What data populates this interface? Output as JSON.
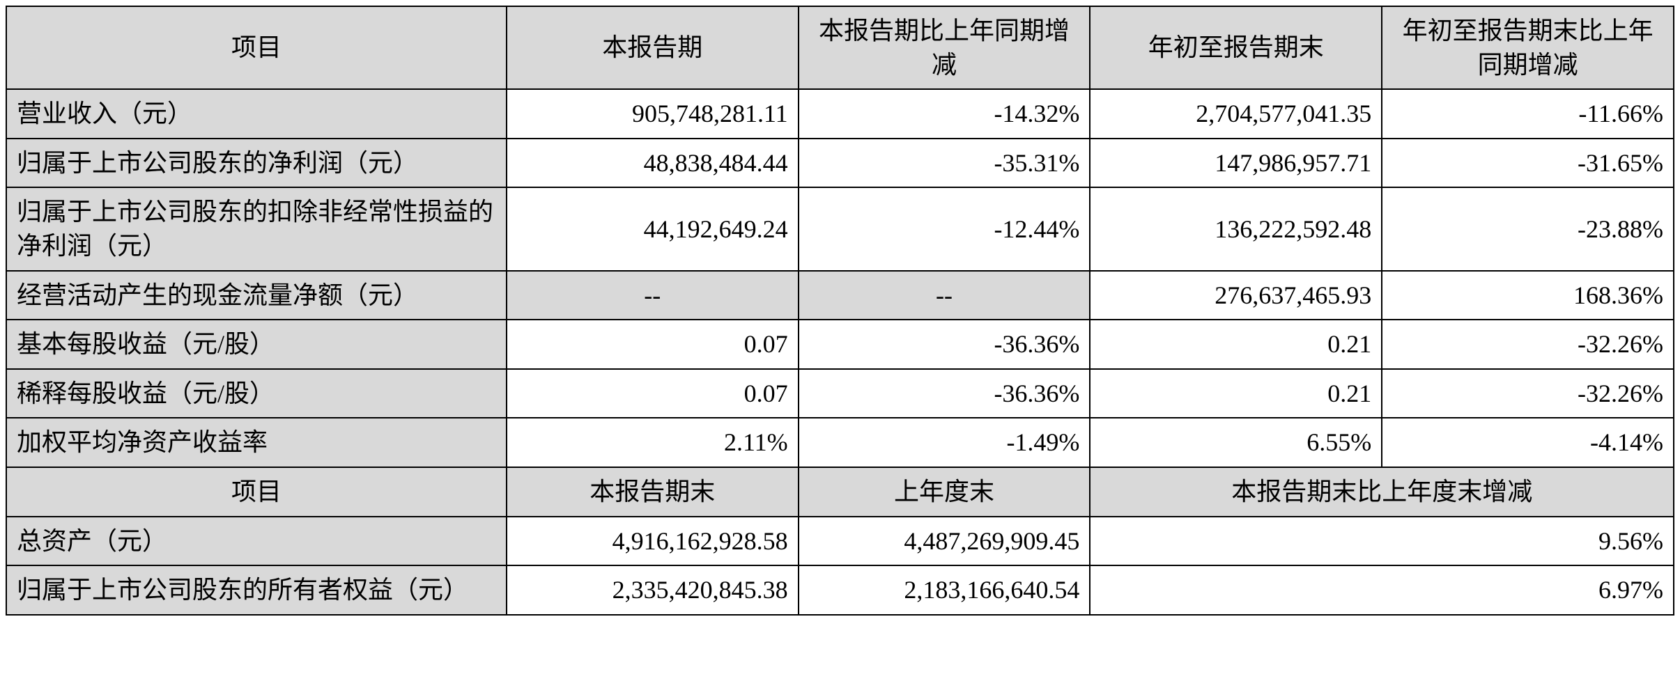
{
  "table": {
    "type": "table",
    "background_color": "#ffffff",
    "header_bg": "#d9d9d9",
    "border_color": "#000000",
    "font_family": "SimSun",
    "font_size_pt": 18,
    "columns_top": [
      "项目",
      "本报告期",
      "本报告期比上年同期增减",
      "年初至报告期末",
      "年初至报告期末比上年同期增减"
    ],
    "columns_bottom": [
      "项目",
      "本报告期末",
      "上年度末",
      "本报告期末比上年度末增减"
    ],
    "rows_top": [
      {
        "label": "营业收入（元）",
        "c1": "905,748,281.11",
        "c2": "-14.32%",
        "c3": "2,704,577,041.35",
        "c4": "-11.66%"
      },
      {
        "label": "归属于上市公司股东的净利润（元）",
        "c1": "48,838,484.44",
        "c2": "-35.31%",
        "c3": "147,986,957.71",
        "c4": "-31.65%"
      },
      {
        "label": "归属于上市公司股东的扣除非经常性损益的净利润（元）",
        "c1": "44,192,649.24",
        "c2": "-12.44%",
        "c3": "136,222,592.48",
        "c4": "-23.88%"
      },
      {
        "label": "经营活动产生的现金流量净额（元）",
        "c1": "--",
        "c2": "--",
        "c3": "276,637,465.93",
        "c4": "168.36%",
        "dash": true
      },
      {
        "label": "基本每股收益（元/股）",
        "c1": "0.07",
        "c2": "-36.36%",
        "c3": "0.21",
        "c4": "-32.26%"
      },
      {
        "label": "稀释每股收益（元/股）",
        "c1": "0.07",
        "c2": "-36.36%",
        "c3": "0.21",
        "c4": "-32.26%"
      },
      {
        "label": "加权平均净资产收益率",
        "c1": "2.11%",
        "c2": "-1.49%",
        "c3": "6.55%",
        "c4": "-4.14%"
      }
    ],
    "rows_bottom": [
      {
        "label": "总资产（元）",
        "c1": "4,916,162,928.58",
        "c2": "4,487,269,909.45",
        "c3": "9.56%"
      },
      {
        "label": "归属于上市公司股东的所有者权益（元）",
        "c1": "2,335,420,845.38",
        "c2": "2,183,166,640.54",
        "c3": "6.97%"
      }
    ],
    "column_widths_pct": [
      30,
      17.5,
      17.5,
      17.5,
      17.5
    ],
    "text_align_label": "left",
    "text_align_header": "center",
    "text_align_value": "right"
  }
}
